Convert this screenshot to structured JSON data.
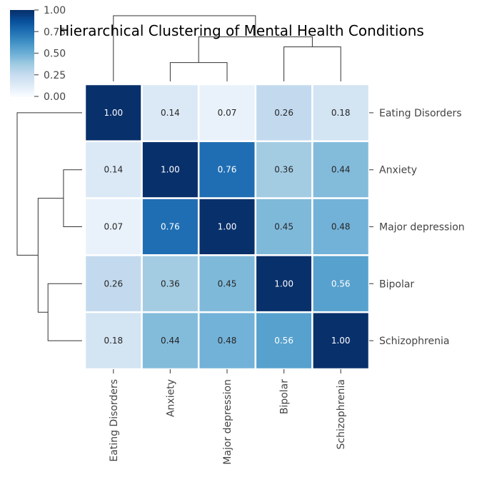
{
  "chart_data": {
    "type": "heatmap",
    "title": "Hierarchical Clustering of Mental Health Conditions",
    "rows": [
      "Eating Disorders",
      "Anxiety",
      "Major depression",
      "Bipolar",
      "Schizophrenia"
    ],
    "columns": [
      "Eating Disorders",
      "Anxiety",
      "Major depression",
      "Bipolar",
      "Schizophrenia"
    ],
    "values": [
      [
        1.0,
        0.14,
        0.07,
        0.26,
        0.18
      ],
      [
        0.14,
        1.0,
        0.76,
        0.36,
        0.44
      ],
      [
        0.07,
        0.76,
        1.0,
        0.45,
        0.48
      ],
      [
        0.26,
        0.36,
        0.45,
        1.0,
        0.56
      ],
      [
        0.18,
        0.44,
        0.48,
        0.56,
        1.0
      ]
    ],
    "colormap": "Blues",
    "vmin": 0.0,
    "vmax": 1.0,
    "colorbar_ticks": [
      0.0,
      0.25,
      0.5,
      0.75,
      1.0
    ],
    "colorbar_tick_labels": [
      "0.00",
      "0.25",
      "0.50",
      "0.75",
      "1.00"
    ],
    "value_format": "2 decimals",
    "dendrogram": "row and column clustering",
    "colorbar_position": "top-left"
  }
}
